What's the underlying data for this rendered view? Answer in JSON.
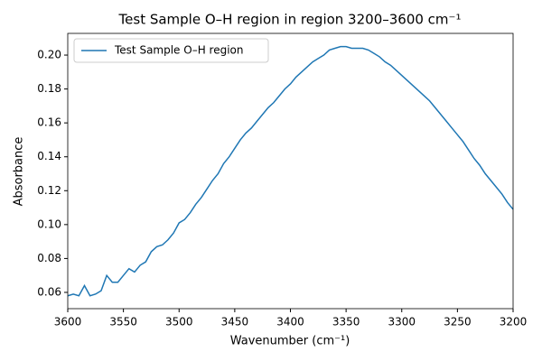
{
  "chart_data": {
    "type": "line",
    "title": "Test Sample O–H region in region 3200–3600 cm⁻¹",
    "x_label": "Wavenumber (cm⁻¹)",
    "y_label": "Absorbance",
    "x": [
      3600,
      3595,
      3590,
      3585,
      3580,
      3575,
      3570,
      3565,
      3560,
      3555,
      3550,
      3545,
      3540,
      3535,
      3530,
      3525,
      3520,
      3515,
      3510,
      3505,
      3500,
      3495,
      3490,
      3485,
      3480,
      3475,
      3470,
      3465,
      3460,
      3455,
      3450,
      3445,
      3440,
      3435,
      3430,
      3425,
      3420,
      3415,
      3410,
      3405,
      3400,
      3395,
      3390,
      3385,
      3380,
      3375,
      3370,
      3365,
      3360,
      3355,
      3350,
      3345,
      3340,
      3335,
      3330,
      3325,
      3320,
      3315,
      3310,
      3305,
      3300,
      3295,
      3290,
      3285,
      3280,
      3275,
      3270,
      3265,
      3260,
      3255,
      3250,
      3245,
      3240,
      3235,
      3230,
      3225,
      3220,
      3215,
      3210,
      3205,
      3200
    ],
    "series": [
      {
        "name": "Test Sample O–H region",
        "color": "#1f77b4",
        "values": [
          0.058,
          0.059,
          0.058,
          0.064,
          0.058,
          0.059,
          0.061,
          0.07,
          0.066,
          0.066,
          0.07,
          0.074,
          0.072,
          0.076,
          0.078,
          0.084,
          0.087,
          0.088,
          0.091,
          0.095,
          0.101,
          0.103,
          0.107,
          0.112,
          0.116,
          0.121,
          0.126,
          0.13,
          0.136,
          0.14,
          0.145,
          0.15,
          0.154,
          0.157,
          0.161,
          0.165,
          0.169,
          0.172,
          0.176,
          0.18,
          0.183,
          0.187,
          0.19,
          0.193,
          0.196,
          0.198,
          0.2,
          0.203,
          0.204,
          0.205,
          0.205,
          0.204,
          0.204,
          0.204,
          0.203,
          0.201,
          0.199,
          0.196,
          0.194,
          0.191,
          0.188,
          0.185,
          0.182,
          0.179,
          0.176,
          0.173,
          0.169,
          0.165,
          0.161,
          0.157,
          0.153,
          0.149,
          0.144,
          0.139,
          0.135,
          0.13,
          0.126,
          0.122,
          0.118,
          0.113,
          0.109
        ]
      }
    ],
    "xlim": [
      3600,
      3200
    ],
    "ylim": [
      0.0504,
      0.2128
    ],
    "xticks": [
      3600,
      3550,
      3500,
      3450,
      3400,
      3350,
      3300,
      3250,
      3200
    ],
    "yticks": [
      0.06,
      0.08,
      {
        "value": 0.1,
        "label": "0.10"
      },
      0.12,
      0.14,
      0.16,
      0.18,
      {
        "value": 0.2,
        "label": "0.20"
      }
    ],
    "legend": "upper left"
  }
}
